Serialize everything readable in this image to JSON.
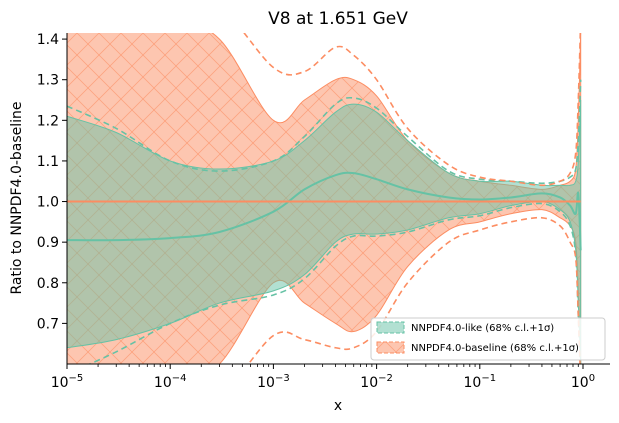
{
  "chart_data": {
    "type": "line",
    "title": "V8 at 1.651 GeV",
    "xlabel": "x",
    "ylabel": "Ratio to NNPDF4.0-baseline",
    "xscale": "log",
    "xlim": [
      1e-05,
      1.6
    ],
    "ylim": [
      0.6,
      1.415
    ],
    "xticks": [
      {
        "value": 1e-05,
        "base": "10",
        "exp": "−5"
      },
      {
        "value": 0.0001,
        "base": "10",
        "exp": "−4"
      },
      {
        "value": 0.001,
        "base": "10",
        "exp": "−3"
      },
      {
        "value": 0.01,
        "base": "10",
        "exp": "−2"
      },
      {
        "value": 0.1,
        "base": "10",
        "exp": "−1"
      },
      {
        "value": 1,
        "base": "10",
        "exp": "0"
      }
    ],
    "yticks": [
      "0.7",
      "0.8",
      "0.9",
      "1.0",
      "1.1",
      "1.2",
      "1.3",
      "1.4"
    ],
    "x": [
      1e-05,
      3e-05,
      0.0001,
      0.0003,
      0.001,
      0.002,
      0.004,
      0.006,
      0.01,
      0.02,
      0.05,
      0.1,
      0.2,
      0.4,
      0.6,
      0.75,
      0.85,
      0.9,
      0.95
    ],
    "series": [
      {
        "name": "NNPDF4.0-like (68% c.l.+1σ)",
        "color": "#66c2a5",
        "central": [
          0.905,
          0.905,
          0.91,
          0.925,
          0.975,
          1.03,
          1.065,
          1.07,
          1.055,
          1.03,
          1.01,
          1.005,
          1.01,
          1.02,
          1.01,
          0.99,
          0.97,
          1.02,
          0.88
        ],
        "band_upper": [
          1.21,
          1.17,
          1.1,
          1.08,
          1.1,
          1.15,
          1.22,
          1.24,
          1.22,
          1.15,
          1.07,
          1.05,
          1.05,
          1.04,
          1.04,
          1.04,
          1.05,
          1.1,
          1.25
        ],
        "band_lower": [
          0.64,
          0.66,
          0.7,
          0.75,
          0.78,
          0.82,
          0.9,
          0.92,
          0.92,
          0.93,
          0.96,
          0.97,
          0.99,
          1.0,
          0.98,
          0.95,
          0.88,
          0.75,
          0.6
        ],
        "dashed_upper": [
          1.235,
          1.18,
          1.1,
          1.075,
          1.1,
          1.16,
          1.24,
          1.255,
          1.23,
          1.16,
          1.075,
          1.055,
          1.05,
          1.045,
          1.05,
          1.06,
          1.08,
          1.15,
          1.3
        ],
        "dashed_lower": [
          0.575,
          0.63,
          0.7,
          0.745,
          0.77,
          0.81,
          0.89,
          0.915,
          0.915,
          0.925,
          0.955,
          0.965,
          0.985,
          0.995,
          0.975,
          0.94,
          0.87,
          0.72,
          0.58
        ]
      },
      {
        "name": "NNPDF4.0-baseline (68% c.l.+1σ)",
        "color": "#fc8d62",
        "central": [
          1.0,
          1.0,
          1.0,
          1.0,
          1.0,
          1.0,
          1.0,
          1.0,
          1.0,
          1.0,
          1.0,
          1.0,
          1.0,
          1.0,
          1.0,
          1.0,
          1.0,
          1.0,
          1.0
        ],
        "band_upper": [
          1.45,
          1.45,
          1.45,
          1.4,
          1.2,
          1.25,
          1.3,
          1.3,
          1.26,
          1.15,
          1.07,
          1.05,
          1.04,
          1.03,
          1.04,
          1.05,
          1.08,
          1.2,
          1.42
        ],
        "band_lower": [
          0.55,
          0.55,
          0.55,
          0.6,
          0.8,
          0.75,
          0.7,
          0.68,
          0.72,
          0.84,
          0.93,
          0.95,
          0.97,
          0.98,
          0.96,
          0.94,
          0.9,
          0.78,
          0.6
        ],
        "dashed_upper": [
          1.5,
          1.5,
          1.5,
          1.48,
          1.33,
          1.32,
          1.38,
          1.36,
          1.3,
          1.18,
          1.09,
          1.06,
          1.05,
          1.04,
          1.05,
          1.07,
          1.12,
          1.25,
          1.45
        ],
        "dashed_lower": [
          0.5,
          0.5,
          0.5,
          0.52,
          0.67,
          0.66,
          0.64,
          0.64,
          0.68,
          0.8,
          0.9,
          0.93,
          0.95,
          0.96,
          0.94,
          0.9,
          0.86,
          0.72,
          0.55
        ]
      }
    ],
    "legend": {
      "placement": "lower-right",
      "entries": [
        {
          "label": "NNPDF4.0-like (68% c.l.+1σ)",
          "color": "#66c2a5"
        },
        {
          "label": "NNPDF4.0-baseline (68% c.l.+1σ)",
          "color": "#fc8d62"
        }
      ]
    },
    "grid": false
  }
}
